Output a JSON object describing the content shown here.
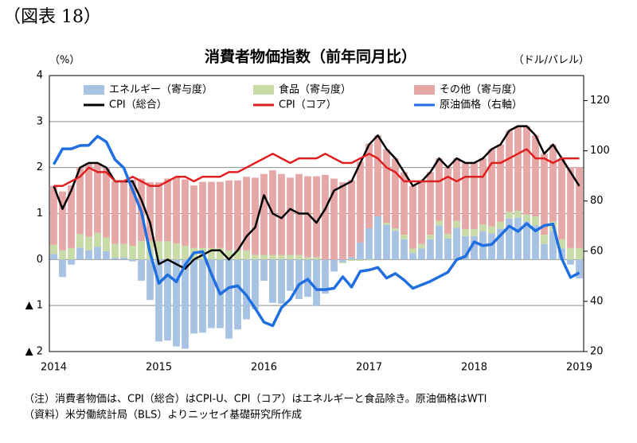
{
  "header": "（図表 18）",
  "chart_data": {
    "type": "bar-line",
    "title": "消費者物価指数（前年同月比）",
    "y_label": "（%）",
    "y2_label": "（ドル/バレル）",
    "categories": [
      "2014",
      null,
      null,
      null,
      null,
      null,
      null,
      null,
      null,
      null,
      null,
      null,
      "2015",
      null,
      null,
      null,
      null,
      null,
      null,
      null,
      null,
      null,
      null,
      null,
      "2016",
      null,
      null,
      null,
      null,
      null,
      null,
      null,
      null,
      null,
      null,
      null,
      "2017",
      null,
      null,
      null,
      null,
      null,
      null,
      null,
      null,
      null,
      null,
      null,
      "2018",
      null,
      null,
      null,
      null,
      null,
      null,
      null,
      null,
      null,
      null,
      null,
      "2019"
    ],
    "ylim": [
      -2,
      4
    ],
    "yticks": [
      {
        "value": -2,
        "label": "▲ 2"
      },
      {
        "value": -1,
        "label": "▲ 1"
      },
      0,
      1,
      2,
      3,
      4
    ],
    "y2lim": [
      20,
      130
    ],
    "y2ticks": [
      20,
      40,
      60,
      80,
      100,
      120
    ],
    "grid": true,
    "series": [
      {
        "name": "エネルギー（寄与度）",
        "kind": "bar",
        "color": "#a7c2e2",
        "values": [
          0.12,
          -0.38,
          -0.11,
          0.26,
          0.2,
          0.28,
          0.18,
          0.04,
          0.04,
          -0.04,
          -0.46,
          -0.88,
          -1.78,
          -1.76,
          -1.89,
          -1.94,
          -1.61,
          -1.59,
          -1.49,
          -1.49,
          -1.72,
          -1.52,
          -1.3,
          -1.08,
          -0.46,
          -0.94,
          -0.96,
          -0.68,
          -0.86,
          -0.81,
          -1.01,
          -0.74,
          -0.26,
          -0.06,
          0.05,
          0.37,
          0.68,
          0.94,
          0.75,
          0.63,
          0.44,
          0.14,
          0.24,
          0.44,
          0.74,
          0.46,
          0.69,
          0.51,
          0.51,
          0.61,
          0.57,
          0.67,
          0.89,
          0.91,
          0.83,
          0.74,
          0.34,
          0.62,
          0.24,
          -0.11,
          -0.41
        ]
      },
      {
        "name": "食品（寄与度）",
        "kind": "bar",
        "color": "#c8dba6",
        "values": [
          0.2,
          0.2,
          0.25,
          0.3,
          0.3,
          0.3,
          0.3,
          0.3,
          0.3,
          0.3,
          0.4,
          0.4,
          0.4,
          0.4,
          0.35,
          0.3,
          0.25,
          0.25,
          0.25,
          0.25,
          0.2,
          0.2,
          0.2,
          0.1,
          0.1,
          0.1,
          0.1,
          0.1,
          0.1,
          0.05,
          0.05,
          0.0,
          0.0,
          -0.02,
          -0.03,
          -0.03,
          -0.02,
          0,
          0.05,
          0.05,
          0.1,
          0.1,
          0.1,
          0.1,
          0.1,
          0.1,
          0.15,
          0.15,
          0.15,
          0.15,
          0.15,
          0.15,
          0.15,
          0.15,
          0.15,
          0.2,
          0.2,
          0.2,
          0.2,
          0.25,
          0.25
        ]
      },
      {
        "name": "その他（寄与度）",
        "kind": "bar",
        "color": "#e6a7a7",
        "values": [
          1.28,
          1.28,
          1.36,
          1.44,
          1.6,
          1.52,
          1.52,
          1.36,
          1.36,
          1.44,
          1.36,
          1.28,
          1.28,
          1.36,
          1.44,
          1.44,
          1.36,
          1.44,
          1.44,
          1.44,
          1.52,
          1.52,
          1.6,
          1.68,
          1.76,
          1.84,
          1.76,
          1.68,
          1.76,
          1.76,
          1.76,
          1.84,
          1.76,
          1.68,
          1.68,
          1.76,
          1.84,
          1.76,
          1.6,
          1.52,
          1.36,
          1.36,
          1.36,
          1.36,
          1.36,
          1.44,
          1.36,
          1.44,
          1.44,
          1.44,
          1.68,
          1.68,
          1.76,
          1.84,
          1.92,
          1.76,
          1.76,
          1.68,
          1.76,
          1.76,
          1.76
        ]
      },
      {
        "name": "CPI（総合）",
        "kind": "line",
        "color": "#000000",
        "values": [
          1.6,
          1.1,
          1.5,
          2.0,
          2.1,
          2.1,
          2.0,
          1.7,
          1.7,
          1.7,
          1.3,
          0.8,
          -0.1,
          0.0,
          -0.1,
          -0.2,
          0.0,
          0.1,
          0.2,
          0.2,
          0.0,
          0.2,
          0.5,
          0.7,
          1.4,
          1.0,
          0.9,
          1.1,
          1.0,
          1.0,
          0.8,
          1.1,
          1.5,
          1.6,
          1.7,
          2.1,
          2.5,
          2.7,
          2.4,
          2.2,
          1.9,
          1.6,
          1.7,
          1.9,
          2.2,
          2.0,
          2.2,
          2.1,
          2.1,
          2.2,
          2.4,
          2.5,
          2.8,
          2.9,
          2.9,
          2.7,
          2.3,
          2.5,
          2.2,
          1.9,
          1.6
        ]
      },
      {
        "name": "CPI（コア）",
        "kind": "line",
        "color": "#e02020",
        "values": [
          1.6,
          1.6,
          1.7,
          1.8,
          2.0,
          1.9,
          1.9,
          1.7,
          1.7,
          1.8,
          1.7,
          1.6,
          1.6,
          1.7,
          1.8,
          1.8,
          1.7,
          1.8,
          1.8,
          1.8,
          1.9,
          1.9,
          2.0,
          2.1,
          2.2,
          2.3,
          2.2,
          2.1,
          2.2,
          2.2,
          2.2,
          2.3,
          2.2,
          2.1,
          2.1,
          2.2,
          2.3,
          2.2,
          2.0,
          1.9,
          1.7,
          1.7,
          1.7,
          1.7,
          1.7,
          1.8,
          1.7,
          1.8,
          1.8,
          1.8,
          2.1,
          2.1,
          2.2,
          2.3,
          2.4,
          2.2,
          2.2,
          2.1,
          2.2,
          2.2,
          2.2
        ]
      },
      {
        "name": "原油価格（右軸）",
        "kind": "line",
        "axis": "y2",
        "color": "#1f6fe0",
        "values": [
          94.6,
          100.8,
          100.8,
          102.1,
          102.2,
          105.8,
          103.6,
          96.5,
          93.2,
          84.4,
          75.8,
          59.3,
          47.2,
          50.6,
          47.8,
          54.5,
          59.3,
          59.8,
          50.9,
          42.9,
          45.5,
          46.2,
          42.4,
          37.2,
          31.7,
          30.3,
          37.5,
          40.8,
          46.7,
          48.8,
          44.7,
          44.7,
          45.2,
          49.8,
          45.7,
          52.0,
          52.5,
          53.5,
          49.3,
          51.1,
          48.5,
          45.2,
          46.6,
          48.0,
          49.8,
          51.6,
          56.6,
          57.9,
          63.7,
          62.2,
          62.7,
          66.3,
          70.0,
          67.9,
          71.0,
          68.1,
          70.2,
          70.8,
          57.0,
          49.5,
          51.4
        ]
      }
    ]
  },
  "notes": [
    "（注）消費者物価は、CPI（総合）はCPI-U、CPI（コア）はエネルギーと食品除き。原油価格はWTI",
    "（資料）米労働統計局（BLS）よりニッセイ基礎研究所作成"
  ]
}
